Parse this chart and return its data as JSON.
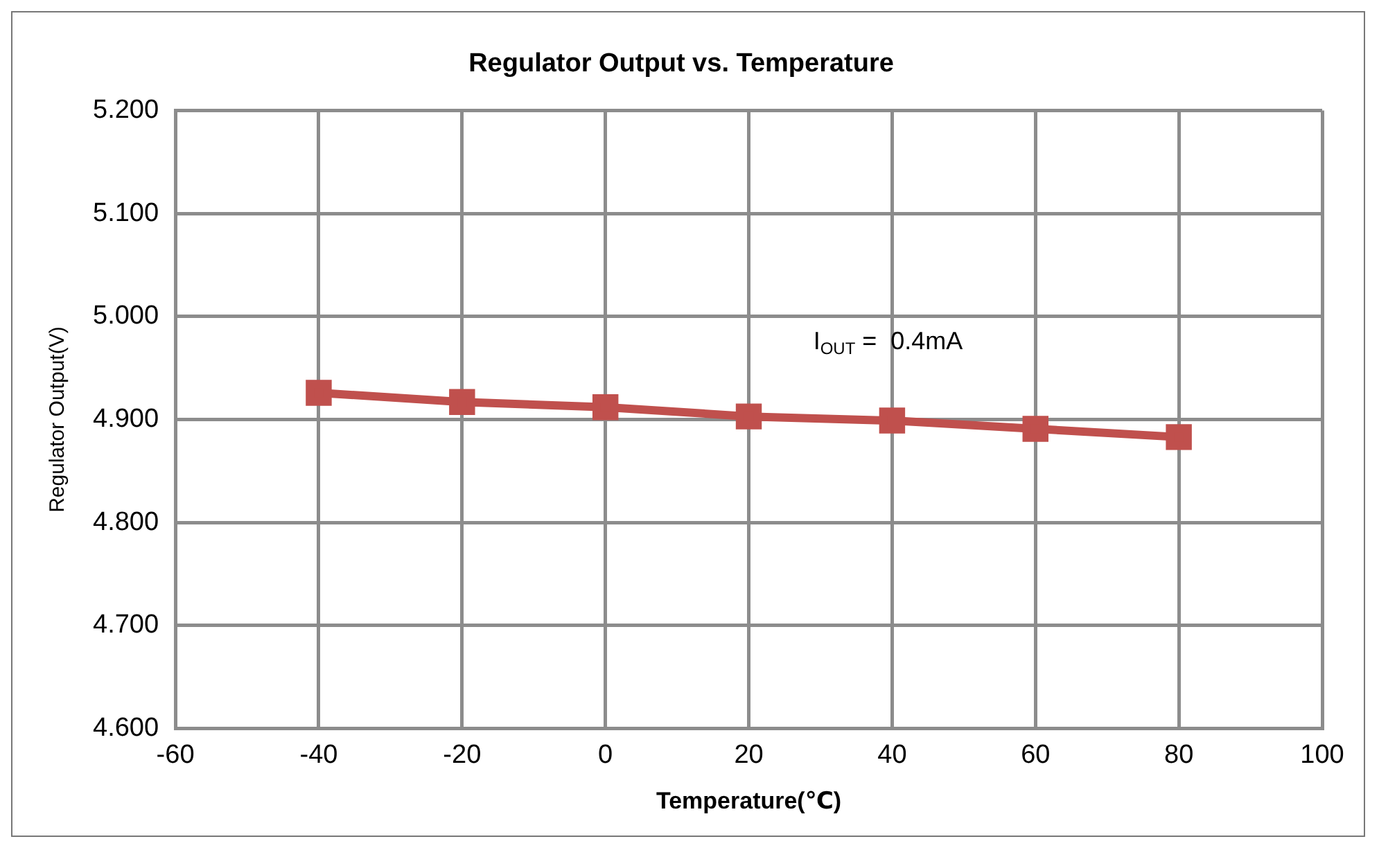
{
  "chart_data": {
    "type": "line",
    "title": "Regulator Output vs. Temperature",
    "xlabel": "Temperature(℃)",
    "ylabel": "Regulator Output(V)",
    "x": [
      -40,
      -20,
      0,
      20,
      40,
      60,
      80
    ],
    "series": [
      {
        "color": "#c0504d",
        "values": [
          4.926,
          4.917,
          4.912,
          4.903,
          4.899,
          4.891,
          4.883
        ]
      }
    ],
    "xlim": [
      -60,
      100
    ],
    "xticks": [
      -60,
      -40,
      -20,
      0,
      20,
      40,
      60,
      80,
      100
    ],
    "ylim": [
      4.6,
      5.2
    ],
    "yticks": [
      {
        "value": 4.6,
        "label": "4.600"
      },
      {
        "value": 4.7,
        "label": "4.700"
      },
      {
        "value": 4.8,
        "label": "4.800"
      },
      {
        "value": 4.9,
        "label": "4.900"
      },
      {
        "value": 5.0,
        "label": "5.000"
      },
      {
        "value": 5.1,
        "label": "5.100"
      },
      {
        "value": 5.2,
        "label": "5.200"
      }
    ],
    "annotations": [
      "I$_{OUT}$ =  0.4mA"
    ],
    "grid": true,
    "legend": false,
    "marker": "square",
    "line_style": "solid"
  }
}
